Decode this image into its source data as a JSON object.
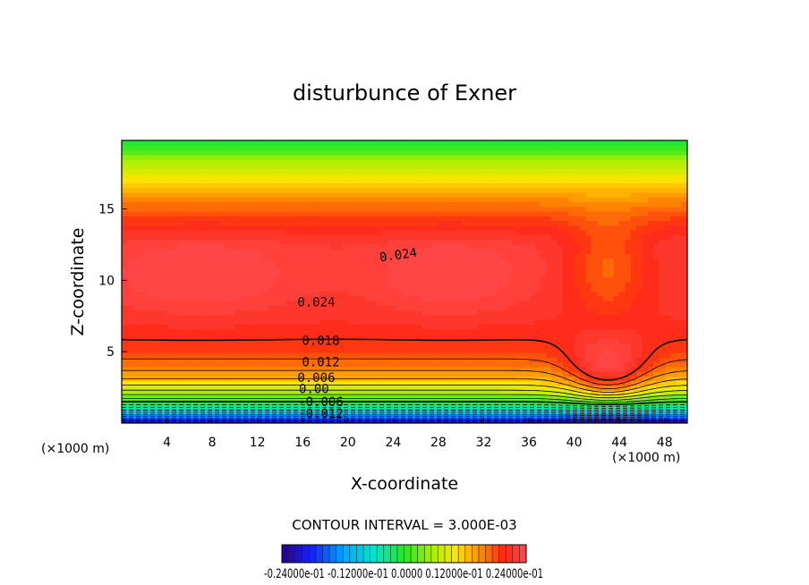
{
  "chart_data": {
    "type": "heatmap",
    "title": "disturbunce of Exner",
    "xlabel": "X-coordinate",
    "ylabel": "Z-coordinate",
    "x_unit_left": "(×1000 m)",
    "x_unit_right": "(×1000 m)",
    "xlim": [
      0,
      50
    ],
    "ylim": [
      0,
      19.8
    ],
    "x_ticks": [
      4,
      8,
      12,
      16,
      20,
      24,
      28,
      32,
      36,
      40,
      44,
      48
    ],
    "x_tick_labels": [
      "4",
      "8",
      "12",
      "16",
      "20",
      "24",
      "28",
      "32",
      "36",
      "40",
      "44",
      "48"
    ],
    "y_ticks": [
      5,
      10,
      15
    ],
    "y_tick_labels": [
      "5",
      "10",
      "15"
    ],
    "contour_interval_text": "CONTOUR INTERVAL = 3.000E-03",
    "contour_labels": [
      {
        "text": "0.024",
        "x": 24.5,
        "y": 11.8
      },
      {
        "text": "0.024",
        "x": 17.2,
        "y": 8.5
      },
      {
        "text": "0.018",
        "x": 17.6,
        "y": 5.8
      },
      {
        "text": "0.012",
        "x": 17.6,
        "y": 4.3
      },
      {
        "text": "0.006",
        "x": 17.2,
        "y": 3.2
      },
      {
        "text": "0.00",
        "x": 17.0,
        "y": 2.4
      },
      {
        "text": "-0.006",
        "x": 17.6,
        "y": 1.5
      },
      {
        "text": "-0.012",
        "x": 17.6,
        "y": 0.7
      }
    ],
    "field_description": "pressure perturbation maximum ~0.027 near z=10 between x=2 and x=34, decreasing to about -0.03 at the surface; warm bulge over x 38-46",
    "colorbar": {
      "range": [
        -0.024,
        0.024
      ],
      "tick_text": "-0.24000e-01",
      "labels_text": "-0.24000e-01  -0.12000e-01  0.0000  0.12000e-01  0.24000e-01"
    }
  }
}
